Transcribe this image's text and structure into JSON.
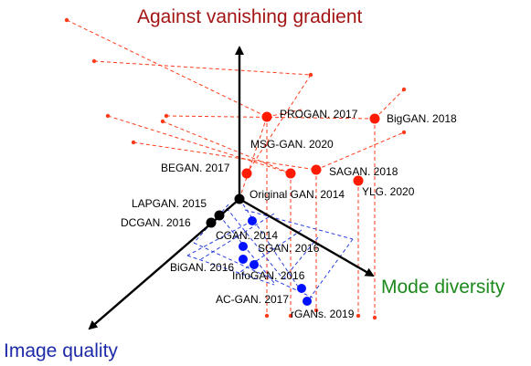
{
  "axes": {
    "vertical": {
      "title": "Against vanishing gradient",
      "color": "#a31515"
    },
    "right": {
      "title": "Mode diversity",
      "color": "#1c8a1c"
    },
    "left": {
      "title": "Image quality",
      "color": "#1d2aa8"
    }
  },
  "colors": {
    "red": "#ff1a00",
    "blue": "#0011ff",
    "black": "#000000",
    "dash_red": "#ff3a1a",
    "dash_blue": "#2a3fe0"
  },
  "models": {
    "progan": "PROGAN. 2017",
    "biggan": "BigGAN. 2018",
    "msggan": "MSG-GAN. 2020",
    "began": "BEGAN. 2017",
    "sagan": "SAGAN. 2018",
    "yalg": "YLG. 2020",
    "original": "Original GAN. 2014",
    "lapgan": "LAPGAN. 2015",
    "dcgan": "DCGAN. 2016",
    "cgan": "CGAN. 2014",
    "sgan": "SGAN. 2016",
    "bigan": "BiGAN. 2016",
    "infogan": "InfoGAN. 2016",
    "acgan": "AC-GAN. 2017",
    "rgans": "rGANs. 2019"
  }
}
